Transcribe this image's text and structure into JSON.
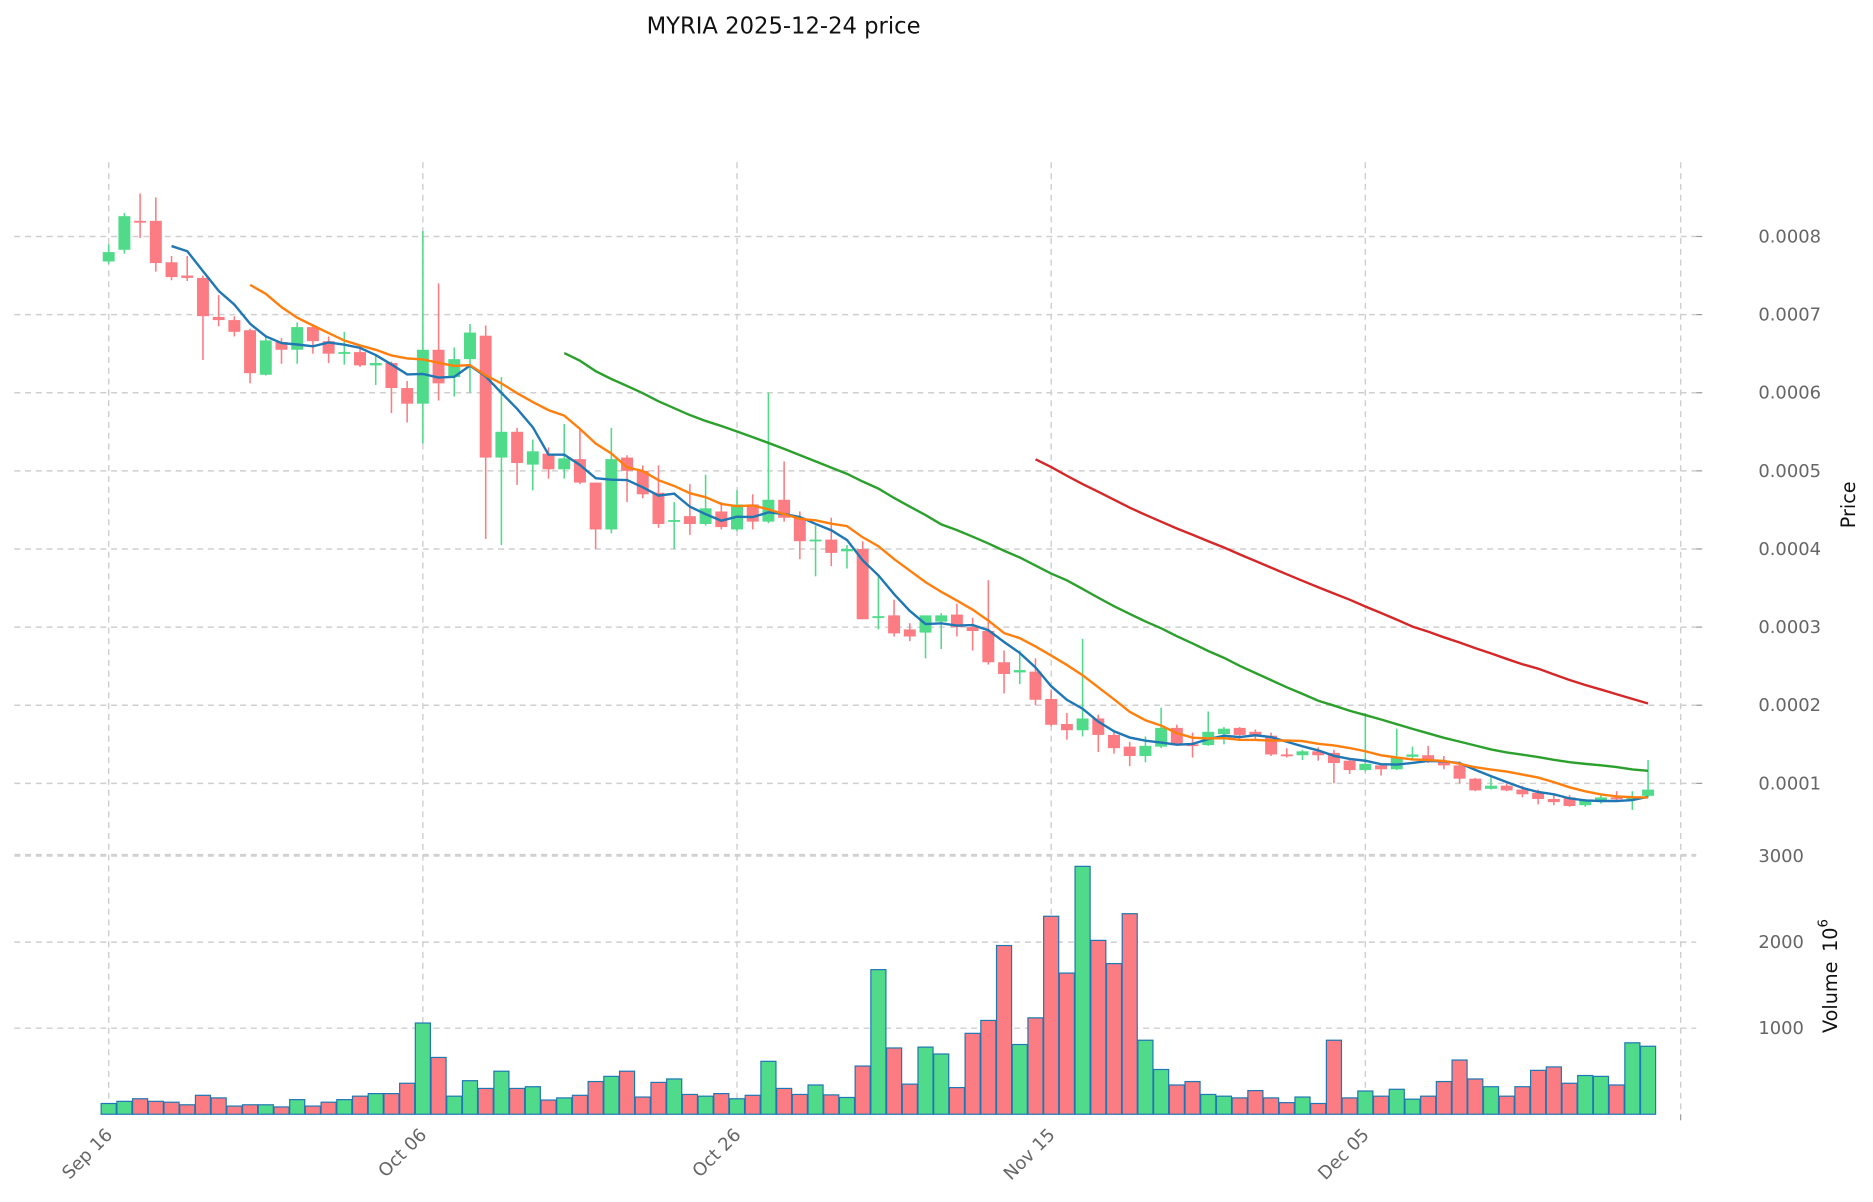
{
  "chart_data": {
    "type": "candlestick",
    "title": "MYRIA  2025-12-24  price",
    "ylabel": "Price",
    "volume_label": "Volume",
    "volume_exponent_base": "10",
    "volume_exponent_power": "6",
    "price_scale": 0.0001,
    "ylim": [
      1.8e-05,
      0.000895
    ],
    "volume_ylim": [
      0,
      3100
    ],
    "yticks": [
      {
        "value": 8,
        "label": "0.0008"
      },
      {
        "value": 7,
        "label": "0.0007"
      },
      {
        "value": 6,
        "label": "0.0006"
      },
      {
        "value": 5,
        "label": "0.0005"
      },
      {
        "value": 4,
        "label": "0.0004"
      },
      {
        "value": 3,
        "label": "0.0003"
      },
      {
        "value": 2,
        "label": "0.0002"
      },
      {
        "value": 1,
        "label": "0.0001"
      }
    ],
    "volume_yticks": [
      {
        "value": 1000,
        "label": "1000"
      },
      {
        "value": 2000,
        "label": "2000"
      },
      {
        "value": 3000,
        "label": "3000"
      }
    ],
    "xticks": [
      {
        "index": 0,
        "label": "Sep 16"
      },
      {
        "index": 20,
        "label": "Oct 06"
      },
      {
        "index": 40,
        "label": "Oct 26"
      },
      {
        "index": 60,
        "label": "Nov 15"
      },
      {
        "index": 80,
        "label": "Dec 05"
      }
    ],
    "grid": true,
    "moving_averages": [
      {
        "window": 5,
        "color": "#1f77b4"
      },
      {
        "window": 10,
        "color": "#ff7f0e"
      },
      {
        "window": 30,
        "color": "#2ca02c"
      },
      {
        "window": 60,
        "color": "#d62728"
      }
    ],
    "colors": {
      "up": "#4fdb8a",
      "down": "#fb7c82",
      "volume_edge": "#1f77b4"
    },
    "ohlc_units": "price x 1e-4",
    "ohlc": [
      [
        7.68,
        7.9,
        7.65,
        7.8
      ],
      [
        7.83,
        8.3,
        7.78,
        8.26
      ],
      [
        8.2,
        8.55,
        7.98,
        8.19
      ],
      [
        8.2,
        8.5,
        7.55,
        7.66
      ],
      [
        7.67,
        7.75,
        7.44,
        7.48
      ],
      [
        7.5,
        7.75,
        7.43,
        7.47
      ],
      [
        7.47,
        7.5,
        6.42,
        6.98
      ],
      [
        6.97,
        7.25,
        6.85,
        6.93
      ],
      [
        6.93,
        6.98,
        6.72,
        6.78
      ],
      [
        6.8,
        6.82,
        6.12,
        6.25
      ],
      [
        6.23,
        6.73,
        6.22,
        6.67
      ],
      [
        6.65,
        6.7,
        6.37,
        6.55
      ],
      [
        6.55,
        6.9,
        6.37,
        6.84
      ],
      [
        6.84,
        6.88,
        6.5,
        6.66
      ],
      [
        6.66,
        6.72,
        6.38,
        6.5
      ],
      [
        6.5,
        6.78,
        6.36,
        6.52
      ],
      [
        6.52,
        6.6,
        6.33,
        6.35
      ],
      [
        6.35,
        6.48,
        6.1,
        6.38
      ],
      [
        6.38,
        6.4,
        5.74,
        6.06
      ],
      [
        6.06,
        6.15,
        5.62,
        5.86
      ],
      [
        5.86,
        8.07,
        5.35,
        6.55
      ],
      [
        6.55,
        7.4,
        5.9,
        6.12
      ],
      [
        6.2,
        6.58,
        5.95,
        6.43
      ],
      [
        6.43,
        6.88,
        6.0,
        6.77
      ],
      [
        6.73,
        6.86,
        4.13,
        5.17
      ],
      [
        5.17,
        6.2,
        4.05,
        5.5
      ],
      [
        5.5,
        5.55,
        4.82,
        5.1
      ],
      [
        5.08,
        5.4,
        4.75,
        5.25
      ],
      [
        5.22,
        5.3,
        4.9,
        5.02
      ],
      [
        5.02,
        5.6,
        4.9,
        5.16
      ],
      [
        5.15,
        5.55,
        4.83,
        4.85
      ],
      [
        4.85,
        4.85,
        4.0,
        4.25
      ],
      [
        4.25,
        5.55,
        4.2,
        5.15
      ],
      [
        5.17,
        5.2,
        4.6,
        5.0
      ],
      [
        5.0,
        5.07,
        4.65,
        4.7
      ],
      [
        4.72,
        5.07,
        4.27,
        4.32
      ],
      [
        4.35,
        4.6,
        4.0,
        4.37
      ],
      [
        4.42,
        4.83,
        4.18,
        4.32
      ],
      [
        4.32,
        4.95,
        4.3,
        4.52
      ],
      [
        4.48,
        4.6,
        4.25,
        4.28
      ],
      [
        4.25,
        4.75,
        4.23,
        4.57
      ],
      [
        4.57,
        4.7,
        4.25,
        4.35
      ],
      [
        4.35,
        6.0,
        4.33,
        4.63
      ],
      [
        4.63,
        5.12,
        4.35,
        4.4
      ],
      [
        4.4,
        4.48,
        3.87,
        4.1
      ],
      [
        4.1,
        4.3,
        3.65,
        4.12
      ],
      [
        4.12,
        4.4,
        3.78,
        3.95
      ],
      [
        3.97,
        4.05,
        3.75,
        4.0
      ],
      [
        4.0,
        4.1,
        3.1,
        3.1
      ],
      [
        3.12,
        3.65,
        2.97,
        3.14
      ],
      [
        3.15,
        3.35,
        2.88,
        2.92
      ],
      [
        2.97,
        3.05,
        2.82,
        2.88
      ],
      [
        2.93,
        3.15,
        2.6,
        3.15
      ],
      [
        3.07,
        3.18,
        2.72,
        3.15
      ],
      [
        3.16,
        3.3,
        2.88,
        3.0
      ],
      [
        3.0,
        3.12,
        2.7,
        2.95
      ],
      [
        2.95,
        3.6,
        2.52,
        2.55
      ],
      [
        2.55,
        2.7,
        2.15,
        2.4
      ],
      [
        2.42,
        2.7,
        2.27,
        2.45
      ],
      [
        2.43,
        2.6,
        2.0,
        2.07
      ],
      [
        2.08,
        2.2,
        1.73,
        1.75
      ],
      [
        1.76,
        1.9,
        1.56,
        1.68
      ],
      [
        1.68,
        2.85,
        1.6,
        1.83
      ],
      [
        1.83,
        1.88,
        1.4,
        1.62
      ],
      [
        1.62,
        1.67,
        1.38,
        1.45
      ],
      [
        1.47,
        1.53,
        1.22,
        1.35
      ],
      [
        1.35,
        1.6,
        1.27,
        1.48
      ],
      [
        1.47,
        1.97,
        1.45,
        1.71
      ],
      [
        1.71,
        1.75,
        1.48,
        1.49
      ],
      [
        1.5,
        1.65,
        1.33,
        1.49
      ],
      [
        1.49,
        1.92,
        1.48,
        1.66
      ],
      [
        1.63,
        1.72,
        1.5,
        1.7
      ],
      [
        1.71,
        1.72,
        1.55,
        1.62
      ],
      [
        1.66,
        1.69,
        1.55,
        1.61
      ],
      [
        1.61,
        1.65,
        1.35,
        1.37
      ],
      [
        1.37,
        1.45,
        1.33,
        1.36
      ],
      [
        1.36,
        1.43,
        1.3,
        1.41
      ],
      [
        1.41,
        1.46,
        1.29,
        1.36
      ],
      [
        1.39,
        1.43,
        1.0,
        1.26
      ],
      [
        1.29,
        1.32,
        1.12,
        1.17
      ],
      [
        1.17,
        1.9,
        1.15,
        1.25
      ],
      [
        1.23,
        1.25,
        1.1,
        1.18
      ],
      [
        1.18,
        1.7,
        1.17,
        1.34
      ],
      [
        1.34,
        1.47,
        1.3,
        1.37
      ],
      [
        1.36,
        1.48,
        1.26,
        1.29
      ],
      [
        1.29,
        1.35,
        1.18,
        1.23
      ],
      [
        1.23,
        1.28,
        1.0,
        1.06
      ],
      [
        1.06,
        1.07,
        0.9,
        0.91
      ],
      [
        0.93,
        1.1,
        0.92,
        0.97
      ],
      [
        0.97,
        1.0,
        0.9,
        0.91
      ],
      [
        0.92,
        0.97,
        0.82,
        0.86
      ],
      [
        0.88,
        0.92,
        0.73,
        0.8
      ],
      [
        0.8,
        0.85,
        0.72,
        0.76
      ],
      [
        0.82,
        0.85,
        0.7,
        0.71
      ],
      [
        0.72,
        0.8,
        0.7,
        0.78
      ],
      [
        0.78,
        0.86,
        0.74,
        0.82
      ],
      [
        0.82,
        0.9,
        0.78,
        0.8
      ],
      [
        0.8,
        0.9,
        0.66,
        0.82
      ],
      [
        0.84,
        1.3,
        0.82,
        0.92
      ]
    ],
    "volume": [
      125,
      150,
      180,
      150,
      140,
      110,
      220,
      190,
      95,
      110,
      110,
      85,
      170,
      95,
      140,
      170,
      210,
      240,
      240,
      360,
      1060,
      660,
      210,
      390,
      300,
      500,
      300,
      320,
      165,
      190,
      220,
      380,
      440,
      500,
      200,
      370,
      410,
      230,
      210,
      240,
      180,
      220,
      615,
      300,
      230,
      340,
      225,
      195,
      560,
      1680,
      770,
      350,
      780,
      700,
      310,
      940,
      1090,
      1960,
      810,
      1120,
      2300,
      1640,
      2880,
      2020,
      1750,
      2330,
      860,
      520,
      340,
      380,
      230,
      210,
      190,
      275,
      190,
      135,
      200,
      125,
      860,
      190,
      270,
      210,
      290,
      175,
      210,
      380,
      630,
      410,
      320,
      210,
      320,
      510,
      550,
      360,
      450,
      440,
      340,
      830,
      790
    ]
  }
}
